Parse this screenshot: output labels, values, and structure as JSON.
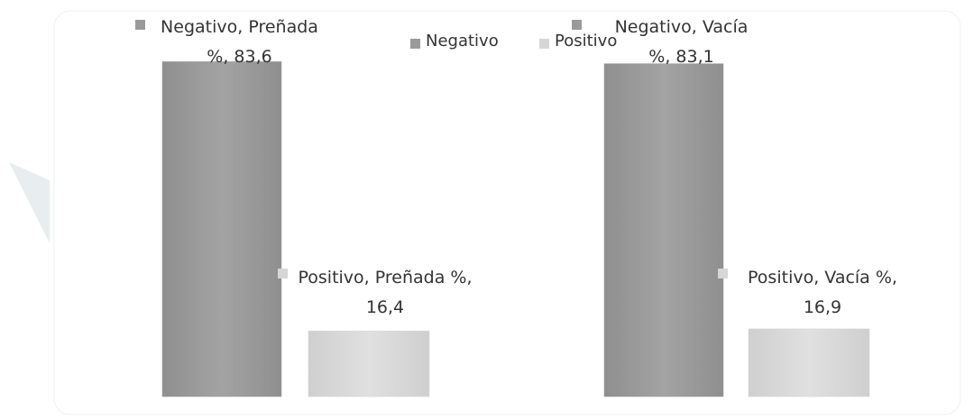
{
  "chart_data": {
    "type": "bar",
    "categories": [
      "Preñada %",
      "Vacía %"
    ],
    "series": [
      {
        "name": "Negativo",
        "color": "#9a9a9a",
        "values": [
          83.6,
          83.1
        ],
        "value_labels": [
          "Negativo, Preñada %, 83,6",
          "Negativo, Vacía %, 83,1"
        ]
      },
      {
        "name": "Positivo",
        "color": "#d6d6d6",
        "values": [
          16.4,
          16.9
        ],
        "value_labels": [
          "Positivo, Preñada %, 16,4",
          "Positivo, Vacía %, 16,9"
        ]
      }
    ],
    "ylim": [
      0,
      90
    ],
    "grid": false,
    "legend": "top"
  }
}
